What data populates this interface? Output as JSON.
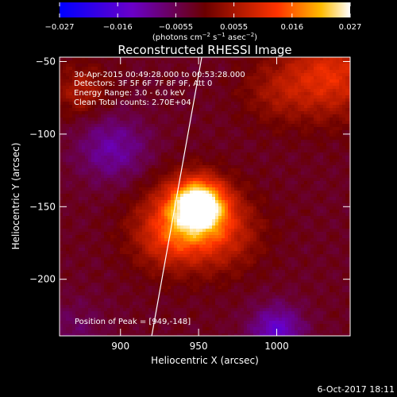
{
  "chart_data": {
    "type": "heatmap",
    "title": "Reconstructed RHESSI Image",
    "xlabel": "Heliocentric X (arcsec)",
    "ylabel": "Heliocentric Y (arcsec)",
    "xlim": [
      861,
      1047
    ],
    "ylim": [
      -239,
      -47
    ],
    "x_ticks": [
      900,
      950,
      1000
    ],
    "x_tick_labels": [
      "900",
      "950",
      "1000"
    ],
    "y_ticks": [
      -50,
      -100,
      -150,
      -200
    ],
    "y_tick_labels": [
      "−50",
      "−100",
      "−150",
      "−200"
    ],
    "colorbar": {
      "ticks": [
        "−0.027",
        "−0.016",
        "−0.0055",
        "0.0055",
        "0.016",
        "0.027"
      ],
      "range": [
        -0.027,
        0.027
      ],
      "unit_base": "(photons cm",
      "unit_sup1": "−2",
      "unit_mid1": " s",
      "unit_sup2": "−1",
      "unit_mid2": " asec",
      "unit_sup3": "−2",
      "unit_end": ")"
    },
    "annotations": {
      "time_range": "30-Apr-2015 00:49:28.000 to 00:53:28.000",
      "detectors": "Detectors: 3F 5F 6F 7F 8F 9F, Att 0",
      "energy": "Energy Range: 3.0 - 6.0 keV",
      "method": "Clean     Total counts: 2.70E+04",
      "peak": "Position of Peak = [949,-148]"
    },
    "sources": [
      {
        "x": 950,
        "y": -148,
        "amp": 0.027,
        "sigma": 12
      },
      {
        "x": 940,
        "y": -160,
        "amp": 0.011,
        "sigma": 20
      },
      {
        "x": 965,
        "y": -168,
        "amp": 0.009,
        "sigma": 18
      },
      {
        "x": 930,
        "y": -172,
        "amp": 0.007,
        "sigma": 16
      },
      {
        "x": 1035,
        "y": -60,
        "amp": 0.013,
        "sigma": 20
      },
      {
        "x": 1000,
        "y": -70,
        "amp": 0.006,
        "sigma": 16
      },
      {
        "x": 875,
        "y": -70,
        "amp": 0.008,
        "sigma": 12
      },
      {
        "x": 895,
        "y": -110,
        "amp": -0.009,
        "sigma": 16
      },
      {
        "x": 1000,
        "y": -235,
        "amp": -0.012,
        "sigma": 12
      },
      {
        "x": 870,
        "y": -235,
        "amp": -0.004,
        "sigma": 15
      }
    ],
    "limb_curve": [
      [
        920,
        -239
      ],
      [
        952,
        -47
      ]
    ],
    "grid": false
  },
  "footer": {
    "date": "6-Oct-2017 18:11"
  }
}
